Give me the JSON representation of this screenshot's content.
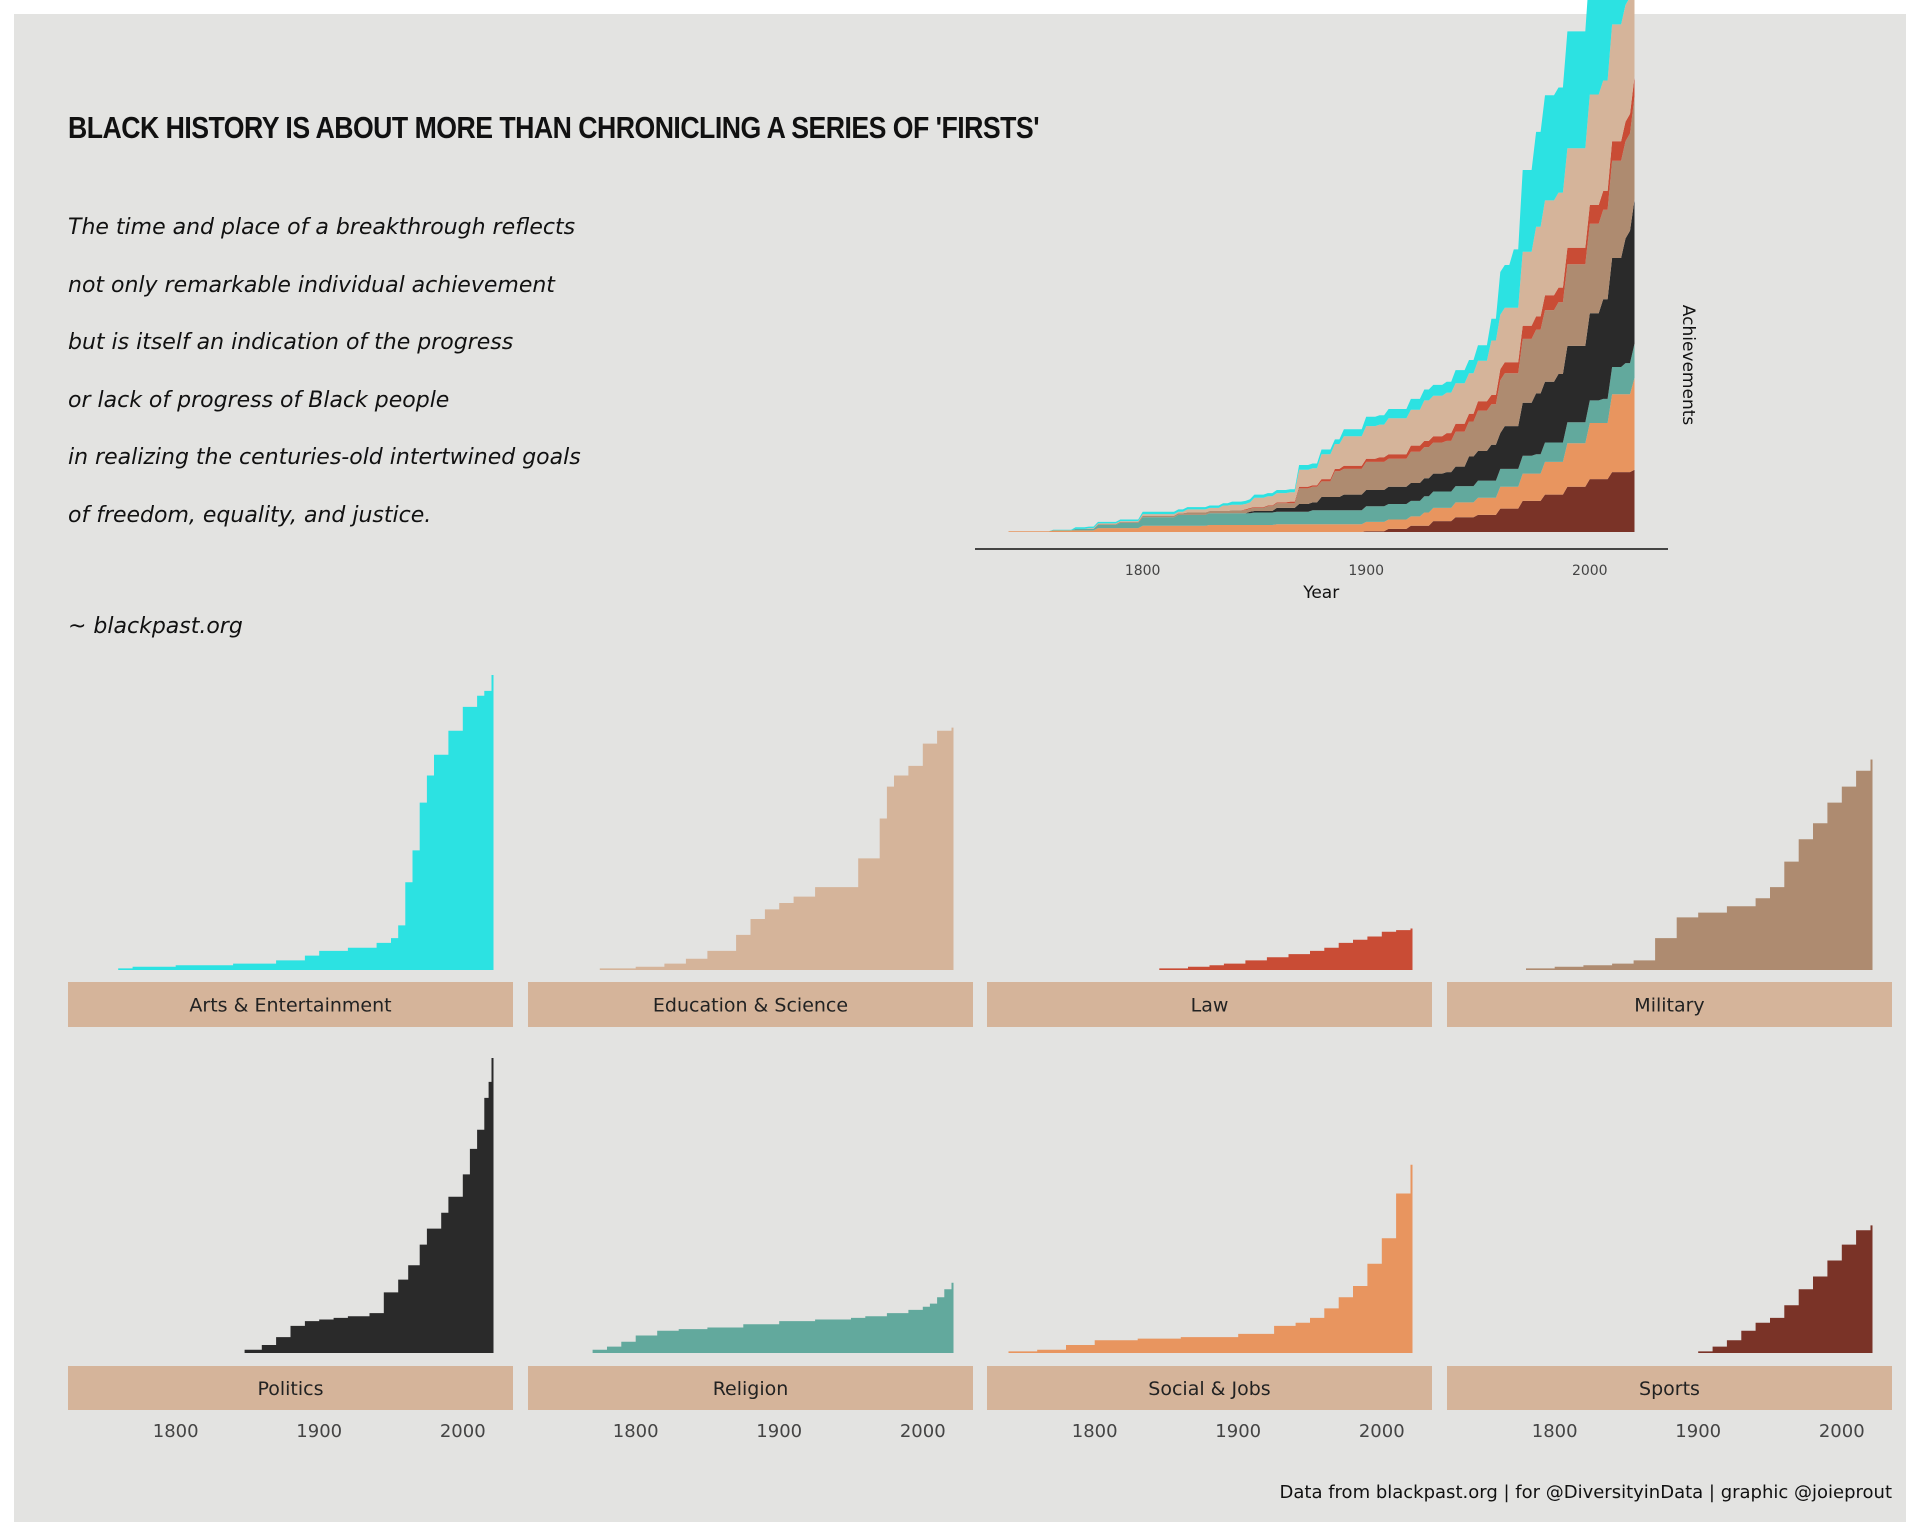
{
  "title": "BLACK HISTORY IS ABOUT MORE THAN CHRONICLING A SERIES OF 'FIRSTS'",
  "quote_lines": [
    "The time and place of a breakthrough reflects",
    "not only remarkable individual achievement",
    "but is itself an indication of the progress",
    "or lack of progress of Black people",
    "in realizing the centuries-old intertwined goals",
    "of freedom, equality, and justice."
  ],
  "quote_source": "~ blackpast.org",
  "caption": "Data from blackpast.org | for @DiversityinData | graphic @joieprout",
  "colors": {
    "Arts & Entertainment": "#2ce2e2",
    "Education & Science": "#d5b49a",
    "Law": "#c94c35",
    "Military": "#ae8b70",
    "Politics": "#2a2a2a",
    "Religion": "#62a99d",
    "Social & Jobs": "#e8955f",
    "Sports": "#7a3327",
    "strip": "#d5b49a",
    "panel_background": "#e3e3e1"
  },
  "chart_data": [
    {
      "type": "area",
      "stacked": true,
      "xlabel": "Year",
      "ylabel": "Achievements",
      "xlim": [
        1725,
        2035
      ],
      "x_ticks": [
        1800,
        1900,
        2000
      ],
      "y_ticks_shown": false,
      "stack_order_bottom_to_top": [
        "Sports",
        "Social & Jobs",
        "Religion",
        "Politics",
        "Military",
        "Law",
        "Education & Science",
        "Arts & Entertainment"
      ],
      "ylim": [
        0,
        465
      ]
    },
    {
      "type": "area",
      "facets": true,
      "layout": "2 rows x 4 columns",
      "xlim": [
        1725,
        2035
      ],
      "x_ticks": [
        1800,
        1900,
        2000
      ],
      "ylim": [
        0,
        185
      ],
      "series": [
        {
          "name": "Arts & Entertainment",
          "x": [
            1760,
            1770,
            1800,
            1840,
            1870,
            1890,
            1900,
            1920,
            1940,
            1950,
            1955,
            1960,
            1965,
            1970,
            1975,
            1980,
            1990,
            2000,
            2010,
            2015,
            2020
          ],
          "y": [
            1,
            2,
            3,
            4,
            6,
            9,
            12,
            14,
            17,
            20,
            28,
            55,
            75,
            105,
            122,
            135,
            150,
            165,
            172,
            175,
            185
          ]
        },
        {
          "name": "Education & Science",
          "x": [
            1775,
            1800,
            1820,
            1835,
            1850,
            1870,
            1880,
            1890,
            1900,
            1910,
            1925,
            1950,
            1955,
            1970,
            1975,
            1980,
            1990,
            2000,
            2010,
            2020
          ],
          "y": [
            1,
            2,
            4,
            7,
            12,
            22,
            32,
            38,
            42,
            46,
            52,
            52,
            70,
            95,
            115,
            122,
            128,
            142,
            150,
            152
          ]
        },
        {
          "name": "Law",
          "x": [
            1845,
            1865,
            1880,
            1890,
            1905,
            1920,
            1935,
            1950,
            1960,
            1970,
            1980,
            1990,
            2000,
            2010,
            2020
          ],
          "y": [
            1,
            2,
            3,
            4,
            6,
            8,
            10,
            12,
            14,
            17,
            19,
            21,
            24,
            25,
            26
          ]
        },
        {
          "name": "Military",
          "x": [
            1780,
            1800,
            1820,
            1840,
            1855,
            1870,
            1885,
            1900,
            1920,
            1940,
            1950,
            1960,
            1970,
            1980,
            1990,
            2000,
            2010,
            2020
          ],
          "y": [
            1,
            2,
            3,
            4,
            6,
            20,
            33,
            36,
            40,
            45,
            52,
            68,
            82,
            92,
            105,
            115,
            125,
            132
          ]
        },
        {
          "name": "Politics",
          "x": [
            1848,
            1860,
            1870,
            1880,
            1890,
            1900,
            1910,
            1920,
            1935,
            1945,
            1955,
            1962,
            1970,
            1975,
            1985,
            1990,
            2000,
            2005,
            2010,
            2015,
            2018,
            2020
          ],
          "y": [
            2,
            5,
            10,
            17,
            20,
            21,
            22,
            23,
            25,
            38,
            46,
            55,
            68,
            78,
            88,
            98,
            112,
            128,
            140,
            160,
            170,
            185
          ]
        },
        {
          "name": "Religion",
          "x": [
            1770,
            1780,
            1790,
            1800,
            1815,
            1830,
            1850,
            1875,
            1900,
            1925,
            1950,
            1960,
            1975,
            1990,
            2000,
            2005,
            2010,
            2015,
            2020
          ],
          "y": [
            2,
            4,
            7,
            11,
            14,
            15,
            16,
            18,
            20,
            21,
            22,
            23,
            25,
            27,
            29,
            31,
            35,
            40,
            44
          ]
        },
        {
          "name": "Social & Jobs",
          "x": [
            1740,
            1760,
            1780,
            1800,
            1830,
            1860,
            1900,
            1925,
            1940,
            1950,
            1960,
            1970,
            1980,
            1990,
            2000,
            2010,
            2020
          ],
          "y": [
            1,
            2,
            5,
            8,
            9,
            10,
            12,
            17,
            19,
            22,
            28,
            35,
            42,
            56,
            72,
            100,
            118
          ]
        },
        {
          "name": "Sports",
          "x": [
            1900,
            1910,
            1920,
            1930,
            1940,
            1950,
            1960,
            1970,
            1980,
            1990,
            2000,
            2010,
            2020
          ],
          "y": [
            1,
            4,
            8,
            14,
            19,
            22,
            30,
            40,
            48,
            58,
            68,
            77,
            80
          ]
        }
      ]
    }
  ]
}
